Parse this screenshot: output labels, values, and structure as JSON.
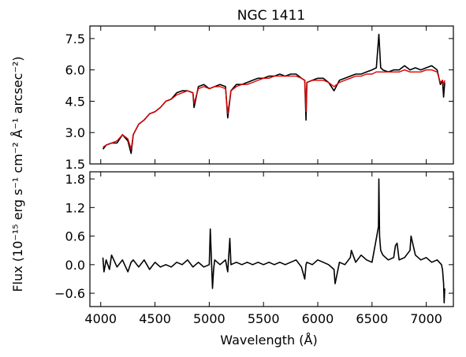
{
  "chart_data": [
    {
      "type": "line",
      "panel": "top",
      "title": "NGC 1411",
      "xlim": [
        3900,
        7250
      ],
      "ylim": [
        1.5,
        8.1
      ],
      "yticks": [
        1.5,
        3.0,
        4.5,
        6.0,
        7.5
      ],
      "ytick_labels": [
        "1.5",
        "3.0",
        "4.5",
        "6.0",
        "7.5"
      ],
      "series": [
        {
          "color": "#000000",
          "x": [
            4020,
            4050,
            4100,
            4150,
            4200,
            4250,
            4280,
            4300,
            4350,
            4400,
            4450,
            4500,
            4550,
            4600,
            4650,
            4700,
            4750,
            4800,
            4850,
            4860,
            4900,
            4950,
            5000,
            5050,
            5100,
            5150,
            5170,
            5200,
            5250,
            5300,
            5350,
            5400,
            5450,
            5500,
            5550,
            5600,
            5650,
            5700,
            5750,
            5800,
            5850,
            5880,
            5892,
            5900,
            5950,
            6000,
            6050,
            6100,
            6150,
            6200,
            6250,
            6300,
            6350,
            6400,
            6450,
            6500,
            6540,
            6563,
            6580,
            6600,
            6650,
            6700,
            6750,
            6800,
            6850,
            6900,
            6950,
            7000,
            7050,
            7100,
            7130,
            7150,
            7160,
            7170
          ],
          "y": [
            2.2,
            2.4,
            2.5,
            2.5,
            2.9,
            2.6,
            2.0,
            2.9,
            3.4,
            3.6,
            3.9,
            4.0,
            4.2,
            4.5,
            4.6,
            4.9,
            5.0,
            5.0,
            4.9,
            4.2,
            5.2,
            5.3,
            5.1,
            5.2,
            5.3,
            5.2,
            3.7,
            5.0,
            5.3,
            5.3,
            5.4,
            5.5,
            5.6,
            5.6,
            5.7,
            5.7,
            5.8,
            5.7,
            5.8,
            5.8,
            5.6,
            5.5,
            3.6,
            5.4,
            5.5,
            5.6,
            5.6,
            5.4,
            5.0,
            5.5,
            5.6,
            5.7,
            5.8,
            5.8,
            5.9,
            6.0,
            6.1,
            7.7,
            6.1,
            6.0,
            5.9,
            6.0,
            6.0,
            6.2,
            6.0,
            6.1,
            6.0,
            6.1,
            6.2,
            6.0,
            5.3,
            5.5,
            4.7,
            5.4
          ]
        },
        {
          "color": "#e00000",
          "x": [
            4020,
            4050,
            4100,
            4150,
            4200,
            4250,
            4280,
            4300,
            4350,
            4400,
            4450,
            4500,
            4550,
            4600,
            4650,
            4700,
            4750,
            4800,
            4850,
            4860,
            4900,
            4950,
            5000,
            5050,
            5100,
            5150,
            5170,
            5200,
            5250,
            5300,
            5350,
            5400,
            5450,
            5500,
            5550,
            5600,
            5650,
            5700,
            5750,
            5800,
            5850,
            5880,
            5892,
            5900,
            5950,
            6000,
            6050,
            6100,
            6150,
            6200,
            6250,
            6300,
            6350,
            6400,
            6450,
            6500,
            6540,
            6563,
            6580,
            6600,
            6650,
            6700,
            6750,
            6800,
            6850,
            6900,
            6950,
            7000,
            7050,
            7100,
            7130,
            7150,
            7160,
            7170
          ],
          "y": [
            2.3,
            2.4,
            2.5,
            2.6,
            2.9,
            2.7,
            2.2,
            2.9,
            3.4,
            3.6,
            3.9,
            4.0,
            4.2,
            4.5,
            4.6,
            4.8,
            4.9,
            5.0,
            4.9,
            4.4,
            5.1,
            5.2,
            5.1,
            5.2,
            5.2,
            5.1,
            3.9,
            5.0,
            5.2,
            5.3,
            5.3,
            5.4,
            5.5,
            5.6,
            5.6,
            5.7,
            5.7,
            5.7,
            5.7,
            5.7,
            5.6,
            5.5,
            4.0,
            5.4,
            5.5,
            5.5,
            5.5,
            5.4,
            5.2,
            5.4,
            5.5,
            5.6,
            5.7,
            5.7,
            5.8,
            5.8,
            5.9,
            5.9,
            5.9,
            5.9,
            5.9,
            5.9,
            5.9,
            6.0,
            5.9,
            5.9,
            5.9,
            6.0,
            6.0,
            5.9,
            5.4,
            5.5,
            5.3,
            5.5
          ]
        }
      ]
    },
    {
      "type": "line",
      "panel": "bottom",
      "xlabel": "Wavelength (Å)",
      "xlim": [
        3900,
        7250
      ],
      "ylim": [
        -0.88,
        1.95
      ],
      "xticks": [
        4000,
        4500,
        5000,
        5500,
        6000,
        6500,
        7000
      ],
      "xtick_labels": [
        "4000",
        "4500",
        "5000",
        "5500",
        "6000",
        "6500",
        "7000"
      ],
      "yticks": [
        -0.6,
        0.0,
        0.6,
        1.2,
        1.8
      ],
      "ytick_labels": [
        "−0.6",
        "0.0",
        "0.6",
        "1.2",
        "1.8"
      ],
      "series": [
        {
          "color": "#000000",
          "x": [
            4020,
            4030,
            4050,
            4080,
            4100,
            4150,
            4200,
            4250,
            4280,
            4300,
            4350,
            4400,
            4450,
            4500,
            4550,
            4600,
            4650,
            4700,
            4750,
            4800,
            4850,
            4900,
            4950,
            5000,
            5010,
            5030,
            5040,
            5050,
            5100,
            5150,
            5170,
            5190,
            5200,
            5250,
            5300,
            5350,
            5400,
            5450,
            5500,
            5550,
            5600,
            5650,
            5700,
            5750,
            5800,
            5850,
            5880,
            5892,
            5900,
            5950,
            6000,
            6050,
            6100,
            6150,
            6160,
            6200,
            6250,
            6300,
            6310,
            6350,
            6400,
            6450,
            6500,
            6540,
            6560,
            6563,
            6570,
            6580,
            6600,
            6650,
            6700,
            6716,
            6731,
            6750,
            6800,
            6850,
            6860,
            6880,
            6900,
            6950,
            7000,
            7050,
            7100,
            7140,
            7150,
            7160,
            7165,
            7170
          ],
          "y": [
            0.15,
            -0.15,
            0.1,
            -0.1,
            0.2,
            -0.05,
            0.1,
            -0.15,
            0.05,
            0.1,
            -0.05,
            0.1,
            -0.1,
            0.05,
            -0.05,
            0.0,
            -0.05,
            0.05,
            0.0,
            0.1,
            -0.05,
            0.05,
            -0.05,
            0.0,
            0.75,
            -0.5,
            -0.1,
            0.1,
            0.0,
            0.1,
            -0.15,
            0.55,
            0.0,
            0.05,
            0.0,
            0.05,
            0.0,
            0.05,
            0.0,
            0.05,
            0.0,
            0.05,
            0.0,
            0.05,
            0.1,
            -0.05,
            -0.3,
            0.0,
            0.05,
            0.0,
            0.1,
            0.05,
            0.0,
            -0.1,
            -0.4,
            0.05,
            0.0,
            0.15,
            0.3,
            0.05,
            0.2,
            0.1,
            0.05,
            0.55,
            0.8,
            1.8,
            0.6,
            0.3,
            0.2,
            0.1,
            0.15,
            0.4,
            0.45,
            0.1,
            0.15,
            0.3,
            0.6,
            0.4,
            0.2,
            0.1,
            0.15,
            0.05,
            0.1,
            0.0,
            -0.1,
            -0.4,
            -0.8,
            -0.5
          ]
        }
      ]
    }
  ],
  "figure": {
    "ylabel": "Flux (10⁻¹⁵ erg s⁻¹ cm⁻² Å⁻¹ arcsec⁻²)"
  }
}
